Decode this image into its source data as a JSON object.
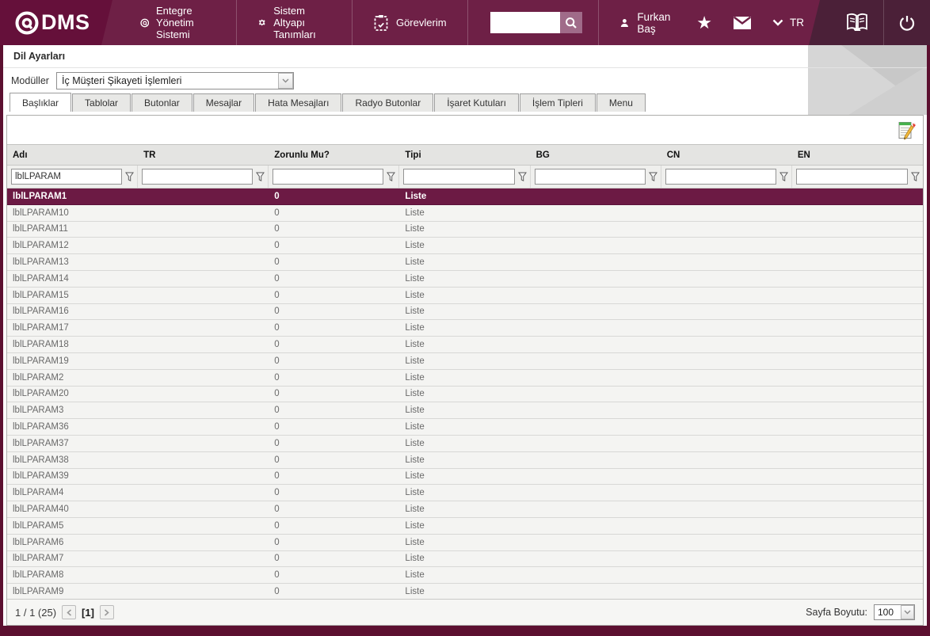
{
  "navbar": {
    "logo_text": "DMS",
    "menu_items": [
      {
        "label": "Entegre Yönetim Sistemi",
        "icon": "qdms-circle-icon"
      },
      {
        "label": "Sistem Altyapı Tanımları",
        "icon": "gear-icon"
      },
      {
        "label": "Görevlerim",
        "icon": "tasks-icon"
      }
    ],
    "search_value": "",
    "user_name": "Furkan Baş",
    "language": "TR"
  },
  "page": {
    "title": "Dil Ayarları",
    "module_label": "Modüller",
    "module_value": "İç Müşteri Şikayeti İşlemleri"
  },
  "tabs": [
    {
      "label": "Başlıklar",
      "active": true
    },
    {
      "label": "Tablolar",
      "active": false
    },
    {
      "label": "Butonlar",
      "active": false
    },
    {
      "label": "Mesajlar",
      "active": false
    },
    {
      "label": "Hata Mesajları",
      "active": false
    },
    {
      "label": "Radyo Butonlar",
      "active": false
    },
    {
      "label": "İşaret Kutuları",
      "active": false
    },
    {
      "label": "İşlem Tipleri",
      "active": false
    },
    {
      "label": "Menu",
      "active": false
    }
  ],
  "grid": {
    "columns": [
      "Adı",
      "TR",
      "Zorunlu Mu?",
      "Tipi",
      "BG",
      "CN",
      "EN"
    ],
    "filters": [
      "lblLPARAM",
      "",
      "",
      "",
      "",
      "",
      ""
    ],
    "rows": [
      {
        "name": "lblLPARAM1",
        "tr": "",
        "zorunlu": "0",
        "tipi": "Liste",
        "bg": "",
        "cn": "",
        "en": "",
        "selected": true
      },
      {
        "name": "lblLPARAM10",
        "tr": "",
        "zorunlu": "0",
        "tipi": "Liste",
        "bg": "",
        "cn": "",
        "en": "",
        "selected": false
      },
      {
        "name": "lblLPARAM11",
        "tr": "",
        "zorunlu": "0",
        "tipi": "Liste",
        "bg": "",
        "cn": "",
        "en": "",
        "selected": false
      },
      {
        "name": "lblLPARAM12",
        "tr": "",
        "zorunlu": "0",
        "tipi": "Liste",
        "bg": "",
        "cn": "",
        "en": "",
        "selected": false
      },
      {
        "name": "lblLPARAM13",
        "tr": "",
        "zorunlu": "0",
        "tipi": "Liste",
        "bg": "",
        "cn": "",
        "en": "",
        "selected": false
      },
      {
        "name": "lblLPARAM14",
        "tr": "",
        "zorunlu": "0",
        "tipi": "Liste",
        "bg": "",
        "cn": "",
        "en": "",
        "selected": false
      },
      {
        "name": "lblLPARAM15",
        "tr": "",
        "zorunlu": "0",
        "tipi": "Liste",
        "bg": "",
        "cn": "",
        "en": "",
        "selected": false
      },
      {
        "name": "lblLPARAM16",
        "tr": "",
        "zorunlu": "0",
        "tipi": "Liste",
        "bg": "",
        "cn": "",
        "en": "",
        "selected": false
      },
      {
        "name": "lblLPARAM17",
        "tr": "",
        "zorunlu": "0",
        "tipi": "Liste",
        "bg": "",
        "cn": "",
        "en": "",
        "selected": false
      },
      {
        "name": "lblLPARAM18",
        "tr": "",
        "zorunlu": "0",
        "tipi": "Liste",
        "bg": "",
        "cn": "",
        "en": "",
        "selected": false
      },
      {
        "name": "lblLPARAM19",
        "tr": "",
        "zorunlu": "0",
        "tipi": "Liste",
        "bg": "",
        "cn": "",
        "en": "",
        "selected": false
      },
      {
        "name": "lblLPARAM2",
        "tr": "",
        "zorunlu": "0",
        "tipi": "Liste",
        "bg": "",
        "cn": "",
        "en": "",
        "selected": false
      },
      {
        "name": "lblLPARAM20",
        "tr": "",
        "zorunlu": "0",
        "tipi": "Liste",
        "bg": "",
        "cn": "",
        "en": "",
        "selected": false
      },
      {
        "name": "lblLPARAM3",
        "tr": "",
        "zorunlu": "0",
        "tipi": "Liste",
        "bg": "",
        "cn": "",
        "en": "",
        "selected": false
      },
      {
        "name": "lblLPARAM36",
        "tr": "",
        "zorunlu": "0",
        "tipi": "Liste",
        "bg": "",
        "cn": "",
        "en": "",
        "selected": false
      },
      {
        "name": "lblLPARAM37",
        "tr": "",
        "zorunlu": "0",
        "tipi": "Liste",
        "bg": "",
        "cn": "",
        "en": "",
        "selected": false
      },
      {
        "name": "lblLPARAM38",
        "tr": "",
        "zorunlu": "0",
        "tipi": "Liste",
        "bg": "",
        "cn": "",
        "en": "",
        "selected": false
      },
      {
        "name": "lblLPARAM39",
        "tr": "",
        "zorunlu": "0",
        "tipi": "Liste",
        "bg": "",
        "cn": "",
        "en": "",
        "selected": false
      },
      {
        "name": "lblLPARAM4",
        "tr": "",
        "zorunlu": "0",
        "tipi": "Liste",
        "bg": "",
        "cn": "",
        "en": "",
        "selected": false
      },
      {
        "name": "lblLPARAM40",
        "tr": "",
        "zorunlu": "0",
        "tipi": "Liste",
        "bg": "",
        "cn": "",
        "en": "",
        "selected": false
      },
      {
        "name": "lblLPARAM5",
        "tr": "",
        "zorunlu": "0",
        "tipi": "Liste",
        "bg": "",
        "cn": "",
        "en": "",
        "selected": false
      },
      {
        "name": "lblLPARAM6",
        "tr": "",
        "zorunlu": "0",
        "tipi": "Liste",
        "bg": "",
        "cn": "",
        "en": "",
        "selected": false
      },
      {
        "name": "lblLPARAM7",
        "tr": "",
        "zorunlu": "0",
        "tipi": "Liste",
        "bg": "",
        "cn": "",
        "en": "",
        "selected": false
      },
      {
        "name": "lblLPARAM8",
        "tr": "",
        "zorunlu": "0",
        "tipi": "Liste",
        "bg": "",
        "cn": "",
        "en": "",
        "selected": false
      },
      {
        "name": "lblLPARAM9",
        "tr": "",
        "zorunlu": "0",
        "tipi": "Liste",
        "bg": "",
        "cn": "",
        "en": "",
        "selected": false
      }
    ]
  },
  "pagination": {
    "summary": "1 / 1 (25)",
    "current_page": "[1]",
    "page_size_label": "Sayfa Boyutu:",
    "page_size": "100"
  },
  "colors": {
    "navbar": "#6e2046",
    "navbar_logo": "#65103a",
    "navbar_dark": "#4b2038",
    "selected_row": "#6c1a44",
    "search_button": "#a06b89"
  }
}
